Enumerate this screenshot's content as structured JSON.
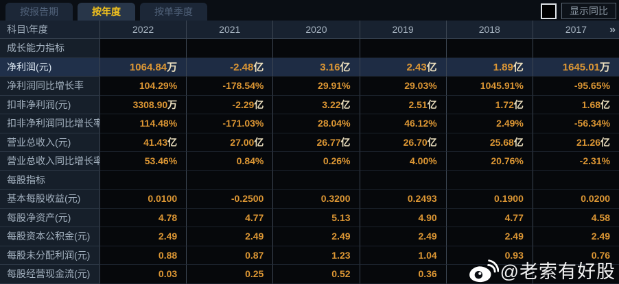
{
  "tabs": [
    {
      "label": "按报告期",
      "active": false
    },
    {
      "label": "按年度",
      "active": true
    },
    {
      "label": "按单季度",
      "active": false
    }
  ],
  "controls": {
    "show_yoy_label": "显示同比",
    "checkbox_checked": false
  },
  "table": {
    "corner_label": "科目\\年度",
    "years": [
      "2022",
      "2021",
      "2020",
      "2019",
      "2018",
      "2017"
    ],
    "more_icon": "»",
    "rows": [
      {
        "label": "成长能力指标",
        "type": "section",
        "values": [
          "",
          "",
          "",
          "",
          "",
          ""
        ]
      },
      {
        "label": "净利润(元)",
        "type": "data",
        "highlight": true,
        "values": [
          "1064.84万",
          "-2.48亿",
          "3.16亿",
          "2.43亿",
          "1.89亿",
          "1645.01万"
        ]
      },
      {
        "label": "净利润同比增长率",
        "type": "data",
        "values": [
          "104.29%",
          "-178.54%",
          "29.91%",
          "29.03%",
          "1045.91%",
          "-95.65%"
        ]
      },
      {
        "label": "扣非净利润(元)",
        "type": "data",
        "values": [
          "3308.90万",
          "-2.29亿",
          "3.22亿",
          "2.51亿",
          "1.72亿",
          "1.68亿"
        ]
      },
      {
        "label": "扣非净利润同比增长率",
        "type": "data",
        "values": [
          "114.48%",
          "-171.03%",
          "28.04%",
          "46.12%",
          "2.49%",
          "-56.34%"
        ]
      },
      {
        "label": "营业总收入(元)",
        "type": "data",
        "values": [
          "41.43亿",
          "27.00亿",
          "26.77亿",
          "26.70亿",
          "25.68亿",
          "21.26亿"
        ]
      },
      {
        "label": "营业总收入同比增长率",
        "type": "data",
        "values": [
          "53.46%",
          "0.84%",
          "0.26%",
          "4.00%",
          "20.76%",
          "-2.31%"
        ]
      },
      {
        "label": "每股指标",
        "type": "section",
        "values": [
          "",
          "",
          "",
          "",
          "",
          ""
        ]
      },
      {
        "label": "基本每股收益(元)",
        "type": "data",
        "values": [
          "0.0100",
          "-0.2500",
          "0.3200",
          "0.2493",
          "0.1900",
          "0.0200"
        ]
      },
      {
        "label": "每股净资产(元)",
        "type": "data",
        "values": [
          "4.78",
          "4.77",
          "5.13",
          "4.90",
          "4.77",
          "4.58"
        ]
      },
      {
        "label": "每股资本公积金(元)",
        "type": "data",
        "values": [
          "2.49",
          "2.49",
          "2.49",
          "2.49",
          "2.49",
          "2.49"
        ]
      },
      {
        "label": "每股未分配利润(元)",
        "type": "data",
        "values": [
          "0.88",
          "0.87",
          "1.23",
          "1.04",
          "0.93",
          "0.76"
        ]
      },
      {
        "label": "每股经营现金流(元)",
        "type": "data",
        "values": [
          "0.03",
          "0.25",
          "0.52",
          "0.36",
          "",
          ""
        ]
      }
    ]
  },
  "watermark": {
    "text": "@老索有好股",
    "icon": "weibo-icon"
  },
  "colors": {
    "value_gold": "#dd9734",
    "active_tab_text": "#f2c21e",
    "highlight_row_bg": "#1e2c44",
    "label_bg": "#161f2a",
    "header_bg": "#182230",
    "page_bg": "#0a0d12"
  }
}
